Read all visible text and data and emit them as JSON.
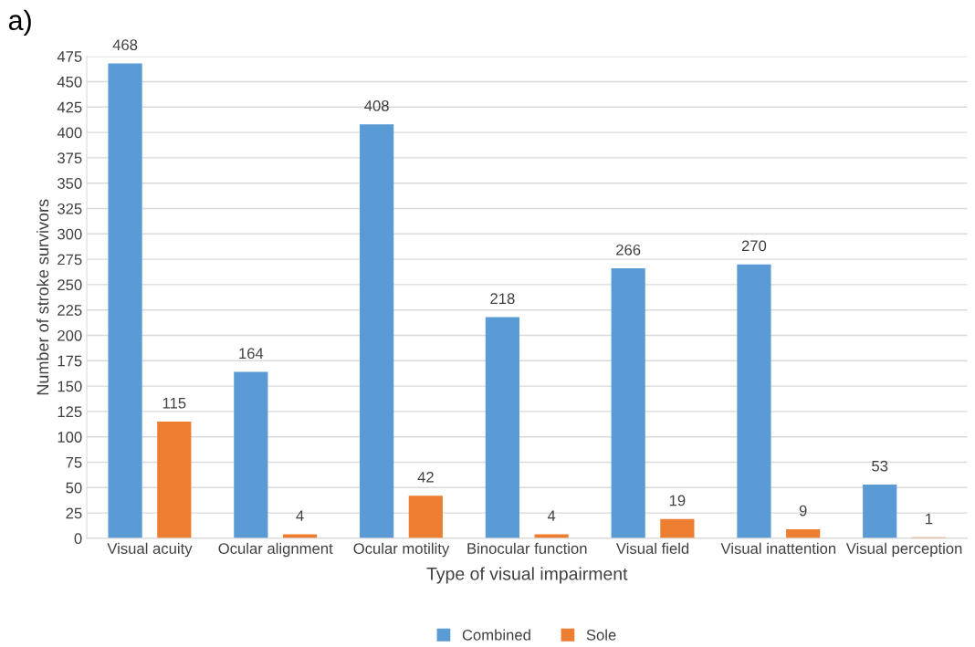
{
  "chart_data": {
    "type": "bar",
    "title": "a)",
    "xlabel": "Type of visual impairment",
    "ylabel": "Number of stroke survivors",
    "categories": [
      "Visual acuity",
      "Ocular alignment",
      "Ocular motility",
      "Binocular function",
      "Visual field",
      "Visual inattention",
      "Visual perception"
    ],
    "series": [
      {
        "name": "Combined",
        "color": "#5b9bd5",
        "values": [
          468,
          164,
          408,
          218,
          266,
          270,
          53
        ]
      },
      {
        "name": "Sole",
        "color": "#ed7d31",
        "values": [
          115,
          4,
          42,
          4,
          19,
          9,
          1
        ]
      }
    ],
    "ylim": [
      0,
      475
    ],
    "yticks": [
      0,
      25,
      50,
      75,
      100,
      125,
      150,
      175,
      200,
      225,
      250,
      275,
      300,
      325,
      350,
      375,
      400,
      425,
      450,
      475
    ],
    "grid": "y",
    "legend": "bottom",
    "data_labels": true
  }
}
